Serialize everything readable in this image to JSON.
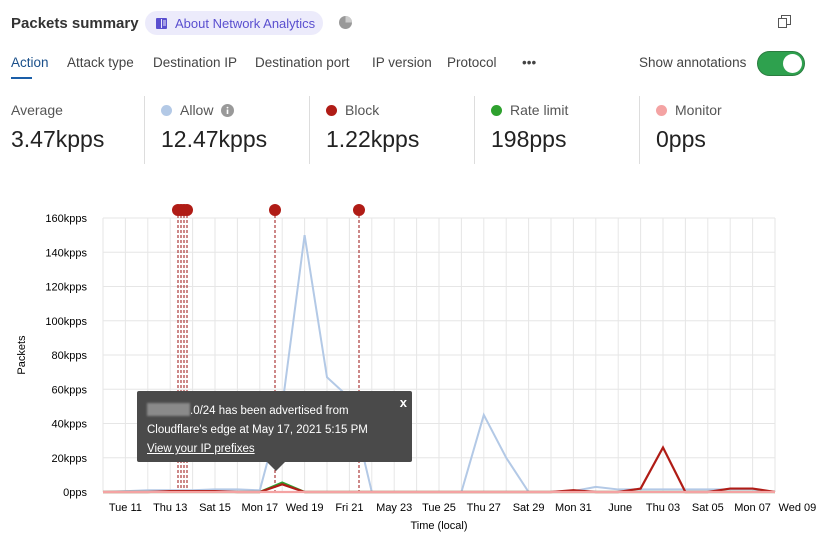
{
  "header": {
    "title": "Packets summary",
    "about_label": "About Network Analytics"
  },
  "tabs": [
    {
      "label": "Action",
      "active": true
    },
    {
      "label": "Attack type"
    },
    {
      "label": "Destination IP"
    },
    {
      "label": "Destination port"
    },
    {
      "label": "IP version"
    },
    {
      "label": "Protocol"
    },
    {
      "label": "•••"
    }
  ],
  "annotations_toggle": {
    "label": "Show annotations",
    "on": true
  },
  "stats": [
    {
      "label": "Average",
      "value": "3.47kpps"
    },
    {
      "label": "Allow",
      "value": "12.47kpps",
      "color": "#b3c9e6",
      "info": true
    },
    {
      "label": "Block",
      "value": "1.22kpps",
      "color": "#b01c16"
    },
    {
      "label": "Rate limit",
      "value": "198pps",
      "color": "#2ea12e"
    },
    {
      "label": "Monitor",
      "value": "0pps",
      "color": "#f4a3a3"
    }
  ],
  "tooltip": {
    "text1": ".0/24 has been advertised from",
    "text2": "Cloudflare's edge at May 17, 2021 5:15 PM",
    "link": "View your IP prefixes",
    "close": "x"
  },
  "chart_data": {
    "type": "line",
    "xlabel": "Time (local)",
    "ylabel": "Packets",
    "x_ticks": [
      "Tue 11",
      "Thu 13",
      "Sat 15",
      "Mon 17",
      "Wed 19",
      "Fri 21",
      "May 23",
      "Tue 25",
      "Thu 27",
      "Sat 29",
      "Mon 31",
      "June",
      "Thu 03",
      "Sat 05",
      "Mon 07",
      "Wed 09"
    ],
    "y_ticks": [
      "0pps",
      "20kpps",
      "40kpps",
      "60kpps",
      "80kpps",
      "100kpps",
      "120kpps",
      "140kpps",
      "160kpps"
    ],
    "ylim": [
      0,
      160000
    ],
    "x": [
      "May 10",
      "May 11",
      "May 12",
      "May 13",
      "May 14",
      "May 15",
      "May 16",
      "May 17",
      "May 18",
      "May 19",
      "May 20",
      "May 21",
      "May 22",
      "May 23",
      "May 24",
      "May 25",
      "May 26",
      "May 27",
      "May 28",
      "May 29",
      "May 30",
      "May 31",
      "Jun 01",
      "Jun 02",
      "Jun 03",
      "Jun 04",
      "Jun 05",
      "Jun 06",
      "Jun 07",
      "Jun 08",
      "Jun 09"
    ],
    "series": [
      {
        "name": "Allow",
        "color": "#b3c9e6",
        "values": [
          0,
          500,
          1000,
          1000,
          1000,
          1500,
          1500,
          1000,
          50000,
          150000,
          67000,
          55000,
          0,
          0,
          0,
          0,
          0,
          45000,
          20000,
          0,
          0,
          500,
          3000,
          1500,
          1500,
          1500,
          1500,
          1500,
          1500,
          1500,
          0
        ]
      },
      {
        "name": "Block",
        "color": "#b01c16",
        "values": [
          0,
          0,
          0,
          500,
          500,
          500,
          0,
          0,
          4500,
          0,
          0,
          0,
          0,
          0,
          0,
          0,
          0,
          0,
          0,
          0,
          0,
          1000,
          0,
          0,
          2000,
          26000,
          0,
          0,
          2000,
          2000,
          0
        ]
      },
      {
        "name": "Rate limit",
        "color": "#2ea12e",
        "values": [
          0,
          0,
          0,
          0,
          0,
          0,
          0,
          0,
          5500,
          0,
          0,
          0,
          0,
          0,
          0,
          0,
          0,
          0,
          0,
          0,
          0,
          0,
          0,
          0,
          0,
          0,
          0,
          0,
          0,
          0,
          0
        ]
      },
      {
        "name": "Monitor",
        "color": "#f4a3a3",
        "values": [
          0,
          0,
          0,
          0,
          0,
          0,
          0,
          0,
          0,
          0,
          0,
          0,
          0,
          0,
          0,
          0,
          0,
          0,
          0,
          0,
          0,
          0,
          0,
          0,
          0,
          0,
          0,
          0,
          0,
          0,
          0
        ]
      }
    ],
    "annotations": [
      "May 13",
      "May 13",
      "May 13",
      "May 13",
      "May 17",
      "May 21"
    ],
    "grid": true
  }
}
